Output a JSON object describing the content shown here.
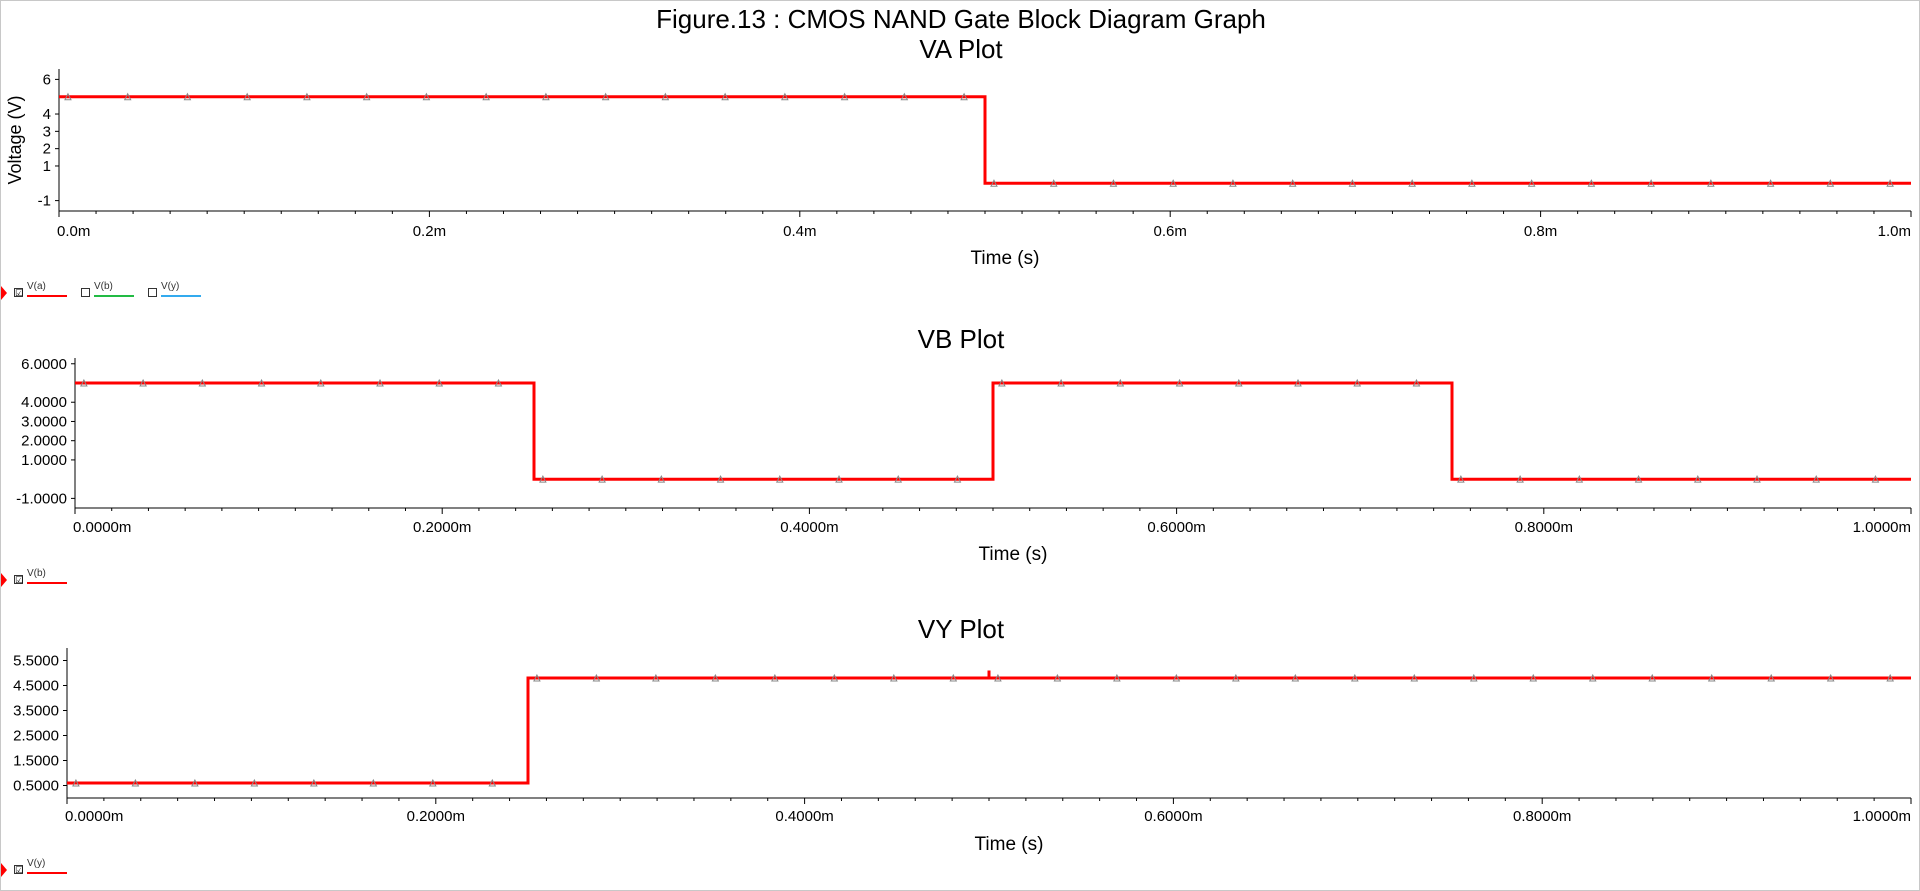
{
  "figure_title": "Figure.13 : CMOS NAND Gate Block Diagram Graph",
  "colors": {
    "trace": "#ff0000",
    "vb_legend": "#22bb44",
    "vy_legend": "#33aaee",
    "axis": "#000000"
  },
  "legends": [
    {
      "items": [
        {
          "label": "V(a)",
          "color": "#ff0000",
          "checked": true
        },
        {
          "label": "V(b)",
          "color": "#22bb44",
          "checked": false
        },
        {
          "label": "V(y)",
          "color": "#33aaee",
          "checked": false
        }
      ]
    },
    {
      "items": [
        {
          "label": "V(b)",
          "color": "#ff0000",
          "checked": true
        }
      ]
    },
    {
      "items": [
        {
          "label": "V(y)",
          "color": "#ff0000",
          "checked": true
        }
      ]
    }
  ],
  "chart_data": [
    {
      "type": "line",
      "title": "VA Plot",
      "xlabel": "Time (s)",
      "ylabel": "Voltage (V)",
      "xlim": [
        0,
        0.001
      ],
      "ylim": [
        -1.6,
        6.6
      ],
      "x_ticks": [
        0,
        0.0002,
        0.0004,
        0.0006,
        0.0008,
        0.001
      ],
      "x_tick_labels": [
        "0.0m",
        "0.2m",
        "0.4m",
        "0.6m",
        "0.8m",
        "1.0m"
      ],
      "y_ticks": [
        6,
        4,
        3,
        2,
        1,
        -1
      ],
      "y_tick_labels": [
        "6",
        "4",
        "3",
        "2",
        "1",
        "-1"
      ],
      "series": [
        {
          "name": "V(a)",
          "x": [
            0,
            0.0005,
            0.0005,
            0.001
          ],
          "y": [
            5,
            5,
            0,
            0
          ]
        }
      ]
    },
    {
      "type": "line",
      "title": "VB Plot",
      "xlabel": "Time (s)",
      "ylabel": "",
      "xlim": [
        0,
        0.001
      ],
      "ylim": [
        -1.5,
        6.3
      ],
      "x_ticks": [
        0,
        0.0002,
        0.0004,
        0.0006,
        0.0008,
        0.001
      ],
      "x_tick_labels": [
        "0.0000m",
        "0.2000m",
        "0.4000m",
        "0.6000m",
        "0.8000m",
        "1.0000m"
      ],
      "y_ticks": [
        6,
        4,
        3,
        2,
        1,
        -1
      ],
      "y_tick_labels": [
        "6.0000",
        "4.0000",
        "3.0000",
        "2.0000",
        "1.0000",
        "-1.0000"
      ],
      "series": [
        {
          "name": "V(b)",
          "x": [
            0,
            0.00025,
            0.00025,
            0.0005,
            0.0005,
            0.00075,
            0.00075,
            0.001
          ],
          "y": [
            5,
            5,
            0,
            0,
            5,
            5,
            0,
            0
          ]
        }
      ]
    },
    {
      "type": "line",
      "title": "VY Plot",
      "xlabel": "Time (s)",
      "ylabel": "",
      "xlim": [
        0,
        0.001
      ],
      "ylim": [
        0,
        6
      ],
      "x_ticks": [
        0,
        0.0002,
        0.0004,
        0.0006,
        0.0008,
        0.001
      ],
      "x_tick_labels": [
        "0.0000m",
        "0.2000m",
        "0.4000m",
        "0.6000m",
        "0.8000m",
        "1.0000m"
      ],
      "y_ticks": [
        5.5,
        4.5,
        3.5,
        2.5,
        1.5,
        0.5
      ],
      "y_tick_labels": [
        "5.5000",
        "4.5000",
        "3.5000",
        "2.5000",
        "1.5000",
        "0.5000"
      ],
      "series": [
        {
          "name": "V(y)",
          "x": [
            0,
            0.00025,
            0.00025,
            0.0005,
            0.0005,
            0.0005,
            0.001
          ],
          "y": [
            0.6,
            0.6,
            4.8,
            4.8,
            5.1,
            4.8,
            4.8
          ]
        }
      ]
    }
  ]
}
